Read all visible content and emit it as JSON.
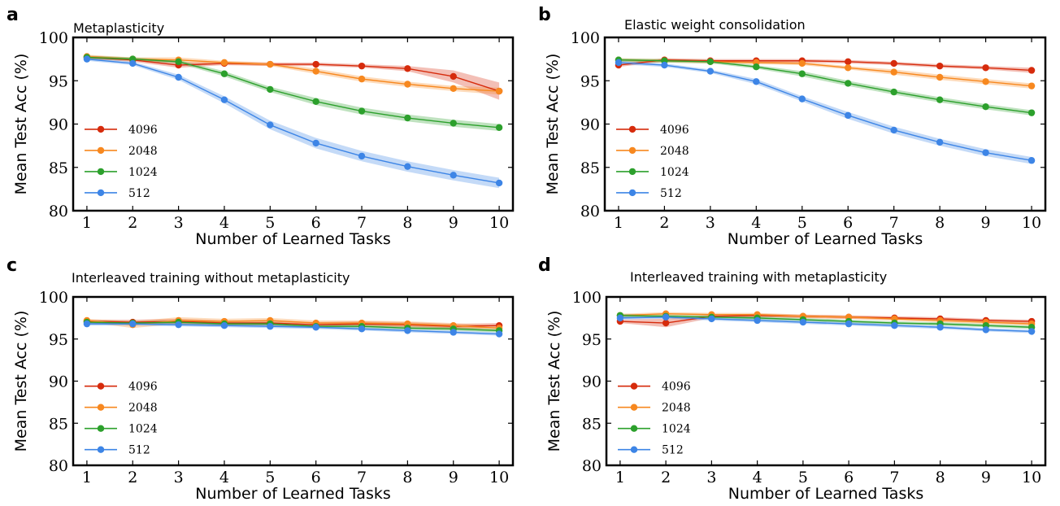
{
  "chart_data": [
    {
      "type": "line",
      "panel": "a",
      "title": "Metaplasticity",
      "xlabel": "Number of Learned Tasks",
      "ylabel": "Mean Test Acc (%)",
      "xlim": [
        0.7,
        10.3
      ],
      "ylim": [
        80,
        100
      ],
      "x": [
        1,
        2,
        3,
        4,
        5,
        6,
        7,
        8,
        9,
        10
      ],
      "yticks": [
        80,
        85,
        90,
        95,
        100
      ],
      "legend_position": "center-left",
      "series": [
        {
          "name": "4096",
          "color": "#d62b0c",
          "values": [
            97.7,
            97.4,
            96.8,
            97.0,
            96.9,
            96.9,
            96.7,
            96.4,
            95.5,
            93.8
          ],
          "band": [
            0.2,
            0.2,
            0.3,
            0.2,
            0.2,
            0.2,
            0.2,
            0.3,
            0.7,
            1.0
          ]
        },
        {
          "name": "2048",
          "color": "#f7881f",
          "values": [
            97.8,
            97.5,
            97.4,
            97.1,
            96.9,
            96.1,
            95.2,
            94.6,
            94.1,
            93.8
          ],
          "band": [
            0.2,
            0.2,
            0.3,
            0.2,
            0.2,
            0.3,
            0.3,
            0.3,
            0.3,
            0.4
          ]
        },
        {
          "name": "1024",
          "color": "#2ca02c",
          "values": [
            97.7,
            97.5,
            97.2,
            95.8,
            94.0,
            92.6,
            91.5,
            90.7,
            90.1,
            89.6
          ],
          "band": [
            0.2,
            0.2,
            0.2,
            0.3,
            0.3,
            0.4,
            0.4,
            0.4,
            0.4,
            0.4
          ]
        },
        {
          "name": "512",
          "color": "#3d85e6",
          "values": [
            97.5,
            97.0,
            95.4,
            92.8,
            89.9,
            87.8,
            86.3,
            85.1,
            84.1,
            83.2
          ],
          "band": [
            0.2,
            0.2,
            0.3,
            0.4,
            0.5,
            0.6,
            0.6,
            0.6,
            0.6,
            0.6
          ]
        }
      ]
    },
    {
      "type": "line",
      "panel": "b",
      "title": "Elastic weight consolidation",
      "xlabel": "Number of Learned Tasks",
      "ylabel": "Mean Test Acc (%)",
      "xlim": [
        0.7,
        10.3
      ],
      "ylim": [
        80,
        100
      ],
      "x": [
        1,
        2,
        3,
        4,
        5,
        6,
        7,
        8,
        9,
        10
      ],
      "yticks": [
        80,
        85,
        90,
        95,
        100
      ],
      "legend_position": "center-left",
      "series": [
        {
          "name": "4096",
          "color": "#d62b0c",
          "values": [
            96.8,
            97.4,
            97.3,
            97.3,
            97.3,
            97.2,
            97.0,
            96.7,
            96.5,
            96.2
          ],
          "band": [
            0.2,
            0.2,
            0.2,
            0.2,
            0.2,
            0.2,
            0.2,
            0.2,
            0.2,
            0.3
          ]
        },
        {
          "name": "2048",
          "color": "#f7881f",
          "values": [
            97.4,
            97.3,
            97.2,
            97.1,
            97.0,
            96.5,
            96.0,
            95.4,
            94.9,
            94.4
          ],
          "band": [
            0.2,
            0.2,
            0.2,
            0.2,
            0.2,
            0.2,
            0.3,
            0.3,
            0.3,
            0.3
          ]
        },
        {
          "name": "1024",
          "color": "#2ca02c",
          "values": [
            97.4,
            97.3,
            97.2,
            96.6,
            95.8,
            94.7,
            93.7,
            92.8,
            92.0,
            91.3
          ],
          "band": [
            0.2,
            0.2,
            0.2,
            0.2,
            0.3,
            0.3,
            0.3,
            0.3,
            0.3,
            0.3
          ]
        },
        {
          "name": "512",
          "color": "#3d85e6",
          "values": [
            97.1,
            96.8,
            96.1,
            94.9,
            92.9,
            91.0,
            89.3,
            87.9,
            86.7,
            85.8
          ],
          "band": [
            0.2,
            0.2,
            0.2,
            0.3,
            0.3,
            0.4,
            0.4,
            0.4,
            0.4,
            0.4
          ]
        }
      ]
    },
    {
      "type": "line",
      "panel": "c",
      "title": "Interleaved training without metaplasticity",
      "xlabel": "Number of Learned Tasks",
      "ylabel": "Mean Test Acc (%)",
      "xlim": [
        0.7,
        10.3
      ],
      "ylim": [
        80,
        100
      ],
      "x": [
        1,
        2,
        3,
        4,
        5,
        6,
        7,
        8,
        9,
        10
      ],
      "yticks": [
        80,
        85,
        90,
        95,
        100
      ],
      "legend_position": "center-left",
      "series": [
        {
          "name": "4096",
          "color": "#d62b0c",
          "values": [
            97.1,
            97.0,
            97.1,
            96.9,
            96.9,
            96.7,
            96.8,
            96.7,
            96.5,
            96.6
          ],
          "band": [
            0.2,
            0.3,
            0.3,
            0.3,
            0.3,
            0.3,
            0.3,
            0.3,
            0.3,
            0.3
          ]
        },
        {
          "name": "2048",
          "color": "#f7881f",
          "values": [
            97.2,
            96.7,
            97.2,
            97.1,
            97.2,
            96.9,
            96.9,
            96.8,
            96.6,
            96.3
          ],
          "band": [
            0.2,
            0.4,
            0.4,
            0.3,
            0.3,
            0.3,
            0.3,
            0.3,
            0.3,
            0.3
          ]
        },
        {
          "name": "1024",
          "color": "#2ca02c",
          "values": [
            97.0,
            96.9,
            97.0,
            96.8,
            96.8,
            96.5,
            96.5,
            96.3,
            96.2,
            96.0
          ],
          "band": [
            0.2,
            0.2,
            0.2,
            0.2,
            0.2,
            0.2,
            0.2,
            0.2,
            0.2,
            0.2
          ]
        },
        {
          "name": "512",
          "color": "#3d85e6",
          "values": [
            96.8,
            96.8,
            96.7,
            96.6,
            96.5,
            96.4,
            96.2,
            96.0,
            95.8,
            95.6
          ],
          "band": [
            0.2,
            0.2,
            0.2,
            0.2,
            0.2,
            0.2,
            0.2,
            0.2,
            0.2,
            0.2
          ]
        }
      ]
    },
    {
      "type": "line",
      "panel": "d",
      "title": "Interleaved training with metaplasticity",
      "xlabel": "Number of Learned Tasks",
      "ylabel": "Mean Test Acc (%)",
      "xlim": [
        0.7,
        10.3
      ],
      "ylim": [
        80,
        100
      ],
      "x": [
        1,
        2,
        3,
        4,
        5,
        6,
        7,
        8,
        9,
        10
      ],
      "yticks": [
        80,
        85,
        90,
        95,
        100
      ],
      "legend_position": "center-left",
      "series": [
        {
          "name": "4096",
          "color": "#d62b0c",
          "values": [
            97.1,
            96.9,
            97.7,
            97.8,
            97.7,
            97.6,
            97.5,
            97.4,
            97.2,
            97.1
          ],
          "band": [
            0.2,
            0.5,
            0.2,
            0.2,
            0.2,
            0.2,
            0.2,
            0.2,
            0.2,
            0.2
          ]
        },
        {
          "name": "2048",
          "color": "#f7881f",
          "values": [
            97.8,
            98.0,
            97.9,
            97.9,
            97.7,
            97.6,
            97.4,
            97.2,
            97.0,
            96.8
          ],
          "band": [
            0.2,
            0.2,
            0.2,
            0.2,
            0.2,
            0.2,
            0.2,
            0.2,
            0.2,
            0.2
          ]
        },
        {
          "name": "1024",
          "color": "#2ca02c",
          "values": [
            97.8,
            97.7,
            97.6,
            97.5,
            97.3,
            97.1,
            96.9,
            96.8,
            96.6,
            96.4
          ],
          "band": [
            0.2,
            0.2,
            0.2,
            0.2,
            0.2,
            0.2,
            0.2,
            0.2,
            0.2,
            0.2
          ]
        },
        {
          "name": "512",
          "color": "#3d85e6",
          "values": [
            97.5,
            97.6,
            97.4,
            97.2,
            97.0,
            96.8,
            96.6,
            96.4,
            96.1,
            95.9
          ],
          "band": [
            0.2,
            0.2,
            0.2,
            0.2,
            0.2,
            0.2,
            0.2,
            0.2,
            0.2,
            0.2
          ]
        }
      ]
    }
  ]
}
